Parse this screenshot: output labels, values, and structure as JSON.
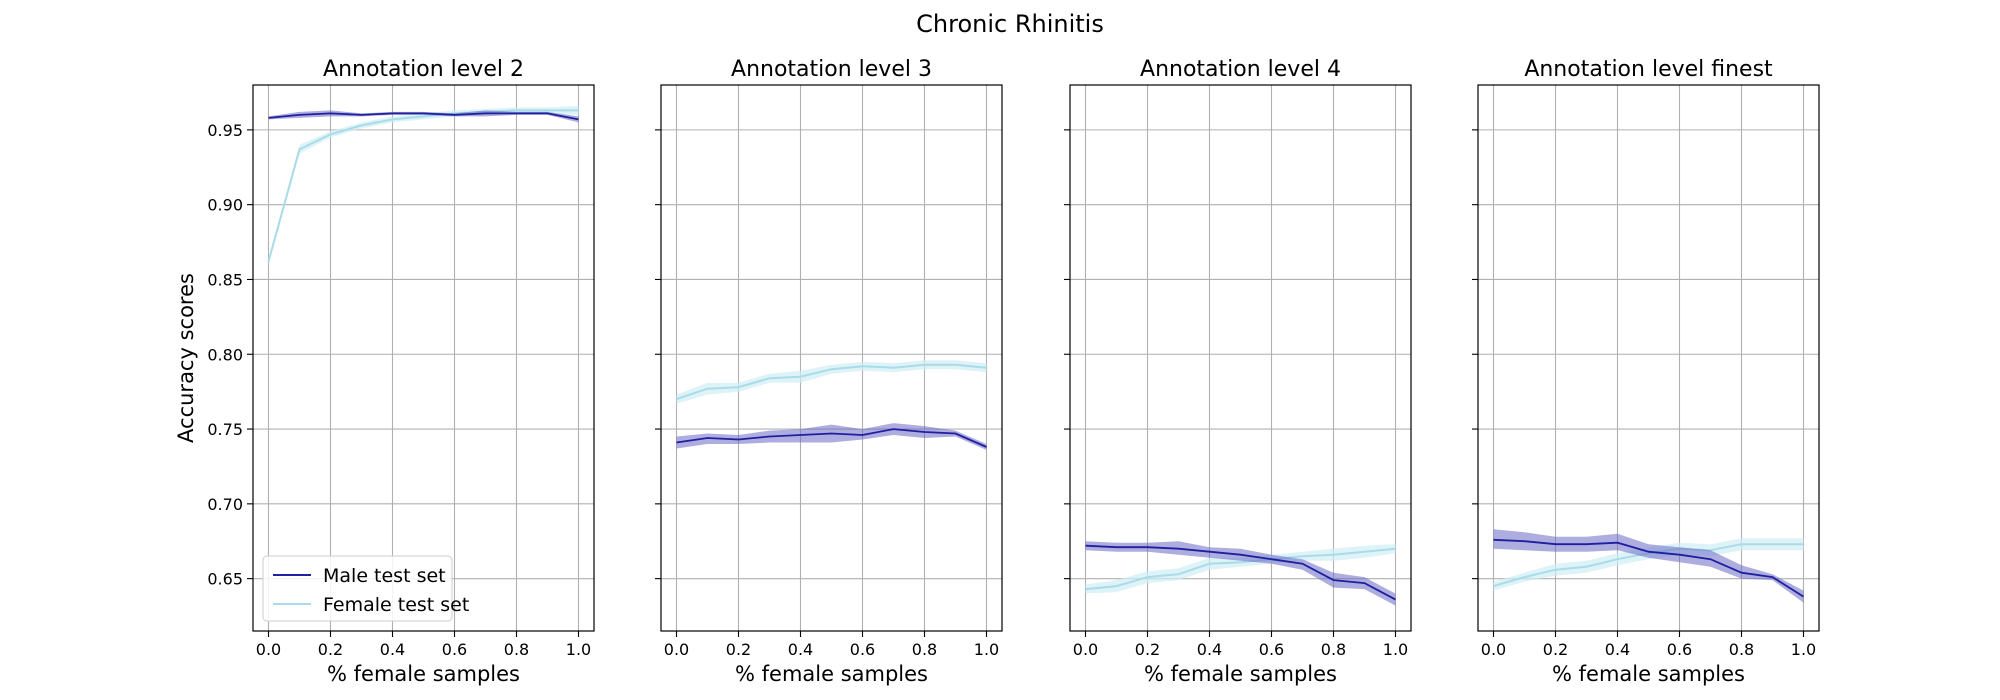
{
  "figure": {
    "title": "Chronic Rhinitis"
  },
  "colors": {
    "male_line": "#1f1fa0",
    "male_band": "#6a6ac4",
    "female_line": "#a9dbe8",
    "female_band": "#cfeef5"
  },
  "legend": {
    "entries": [
      "Male test set",
      "Female test set"
    ],
    "placement": "lower-left",
    "panel": 0
  },
  "chart_data": [
    {
      "type": "line",
      "title": "Annotation level 2",
      "xlabel": "% female samples",
      "ylabel": "Accuracy scores",
      "xlim": [
        -0.05,
        1.05
      ],
      "ylim": [
        0.615,
        0.98
      ],
      "xticks": [
        "0.0",
        "0.2",
        "0.4",
        "0.6",
        "0.8",
        "1.0"
      ],
      "yticks": [
        "0.65",
        "0.70",
        "0.75",
        "0.80",
        "0.85",
        "0.90",
        "0.95"
      ],
      "grid": true,
      "x": [
        0.0,
        0.1,
        0.2,
        0.3,
        0.4,
        0.5,
        0.6,
        0.7,
        0.8,
        0.9,
        1.0
      ],
      "series": [
        {
          "name": "Male test set",
          "values": [
            0.958,
            0.96,
            0.961,
            0.96,
            0.961,
            0.961,
            0.96,
            0.961,
            0.961,
            0.961,
            0.957
          ],
          "lower": [
            0.957,
            0.958,
            0.959,
            0.959,
            0.96,
            0.96,
            0.959,
            0.959,
            0.96,
            0.96,
            0.955
          ],
          "upper": [
            0.959,
            0.962,
            0.963,
            0.961,
            0.962,
            0.962,
            0.961,
            0.963,
            0.962,
            0.962,
            0.959
          ]
        },
        {
          "name": "Female test set",
          "values": [
            0.862,
            0.937,
            0.947,
            0.953,
            0.957,
            0.959,
            0.961,
            0.962,
            0.963,
            0.963,
            0.963
          ],
          "lower": [
            0.86,
            0.934,
            0.945,
            0.951,
            0.955,
            0.957,
            0.959,
            0.96,
            0.961,
            0.961,
            0.96
          ],
          "upper": [
            0.864,
            0.94,
            0.949,
            0.955,
            0.959,
            0.961,
            0.963,
            0.964,
            0.965,
            0.965,
            0.966
          ]
        }
      ]
    },
    {
      "type": "line",
      "title": "Annotation level 3",
      "xlabel": "% female samples",
      "ylabel": "",
      "xlim": [
        -0.05,
        1.05
      ],
      "ylim": [
        0.615,
        0.98
      ],
      "xticks": [
        "0.0",
        "0.2",
        "0.4",
        "0.6",
        "0.8",
        "1.0"
      ],
      "yticks": [],
      "grid": true,
      "x": [
        0.0,
        0.1,
        0.2,
        0.3,
        0.4,
        0.5,
        0.6,
        0.7,
        0.8,
        0.9,
        1.0
      ],
      "series": [
        {
          "name": "Male test set",
          "values": [
            0.741,
            0.744,
            0.743,
            0.745,
            0.746,
            0.747,
            0.746,
            0.75,
            0.748,
            0.747,
            0.738
          ],
          "lower": [
            0.737,
            0.74,
            0.74,
            0.741,
            0.741,
            0.741,
            0.743,
            0.746,
            0.744,
            0.745,
            0.736
          ],
          "upper": [
            0.745,
            0.747,
            0.746,
            0.749,
            0.75,
            0.753,
            0.75,
            0.754,
            0.752,
            0.749,
            0.74
          ]
        },
        {
          "name": "Female test set",
          "values": [
            0.77,
            0.777,
            0.778,
            0.784,
            0.785,
            0.79,
            0.792,
            0.791,
            0.793,
            0.793,
            0.791
          ],
          "lower": [
            0.767,
            0.773,
            0.775,
            0.781,
            0.781,
            0.787,
            0.789,
            0.788,
            0.79,
            0.79,
            0.788
          ],
          "upper": [
            0.773,
            0.781,
            0.781,
            0.787,
            0.789,
            0.793,
            0.795,
            0.794,
            0.796,
            0.796,
            0.794
          ]
        }
      ]
    },
    {
      "type": "line",
      "title": "Annotation level 4",
      "xlabel": "% female samples",
      "ylabel": "",
      "xlim": [
        -0.05,
        1.05
      ],
      "ylim": [
        0.615,
        0.98
      ],
      "xticks": [
        "0.0",
        "0.2",
        "0.4",
        "0.6",
        "0.8",
        "1.0"
      ],
      "yticks": [],
      "grid": true,
      "x": [
        0.0,
        0.1,
        0.2,
        0.3,
        0.4,
        0.5,
        0.6,
        0.7,
        0.8,
        0.9,
        1.0
      ],
      "series": [
        {
          "name": "Male test set",
          "values": [
            0.672,
            0.671,
            0.671,
            0.67,
            0.668,
            0.666,
            0.663,
            0.66,
            0.649,
            0.647,
            0.636
          ],
          "lower": [
            0.669,
            0.668,
            0.668,
            0.666,
            0.664,
            0.662,
            0.66,
            0.656,
            0.644,
            0.643,
            0.632
          ],
          "upper": [
            0.675,
            0.674,
            0.674,
            0.675,
            0.671,
            0.67,
            0.666,
            0.663,
            0.654,
            0.651,
            0.64
          ]
        },
        {
          "name": "Female test set",
          "values": [
            0.643,
            0.645,
            0.651,
            0.653,
            0.66,
            0.661,
            0.663,
            0.665,
            0.666,
            0.668,
            0.67
          ],
          "lower": [
            0.64,
            0.641,
            0.647,
            0.649,
            0.656,
            0.658,
            0.66,
            0.662,
            0.662,
            0.664,
            0.667
          ],
          "upper": [
            0.646,
            0.649,
            0.655,
            0.657,
            0.664,
            0.664,
            0.666,
            0.668,
            0.67,
            0.672,
            0.673
          ]
        }
      ]
    },
    {
      "type": "line",
      "title": "Annotation level finest",
      "xlabel": "% female samples",
      "ylabel": "",
      "xlim": [
        -0.05,
        1.05
      ],
      "ylim": [
        0.615,
        0.98
      ],
      "xticks": [
        "0.0",
        "0.2",
        "0.4",
        "0.6",
        "0.8",
        "1.0"
      ],
      "yticks": [],
      "grid": true,
      "x": [
        0.0,
        0.1,
        0.2,
        0.3,
        0.4,
        0.5,
        0.6,
        0.7,
        0.8,
        0.9,
        1.0
      ],
      "series": [
        {
          "name": "Male test set",
          "values": [
            0.676,
            0.675,
            0.673,
            0.673,
            0.674,
            0.668,
            0.666,
            0.663,
            0.654,
            0.651,
            0.638
          ],
          "lower": [
            0.67,
            0.669,
            0.668,
            0.668,
            0.669,
            0.664,
            0.661,
            0.658,
            0.65,
            0.649,
            0.634
          ],
          "upper": [
            0.683,
            0.681,
            0.678,
            0.678,
            0.68,
            0.673,
            0.671,
            0.669,
            0.659,
            0.653,
            0.642
          ]
        },
        {
          "name": "Female test set",
          "values": [
            0.645,
            0.651,
            0.656,
            0.658,
            0.663,
            0.667,
            0.67,
            0.669,
            0.673,
            0.673,
            0.673
          ],
          "lower": [
            0.642,
            0.648,
            0.652,
            0.654,
            0.659,
            0.663,
            0.666,
            0.665,
            0.669,
            0.669,
            0.669
          ],
          "upper": [
            0.648,
            0.654,
            0.66,
            0.662,
            0.667,
            0.671,
            0.674,
            0.673,
            0.677,
            0.677,
            0.677
          ]
        }
      ]
    }
  ]
}
